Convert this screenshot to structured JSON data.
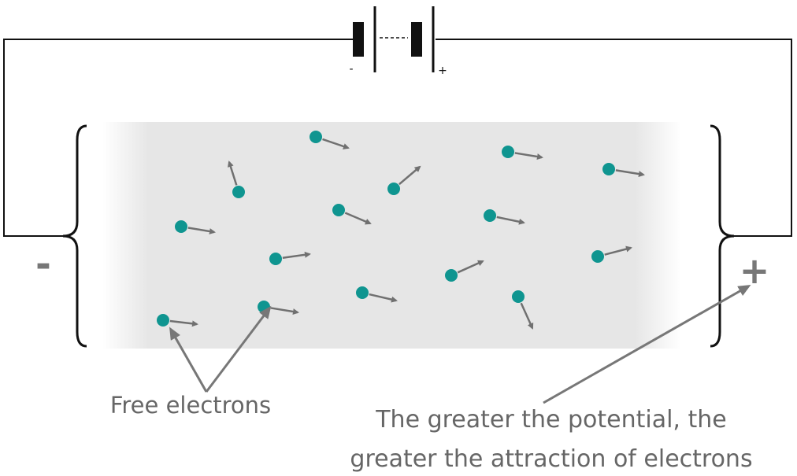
{
  "battery": {
    "minus": "-",
    "plus": "+"
  },
  "terminals": {
    "negative": "-",
    "positive": "+"
  },
  "labels": {
    "free_electrons": "Free electrons",
    "potential": [
      "The greater the potential, the",
      "greater the attraction of electrons"
    ]
  }
}
